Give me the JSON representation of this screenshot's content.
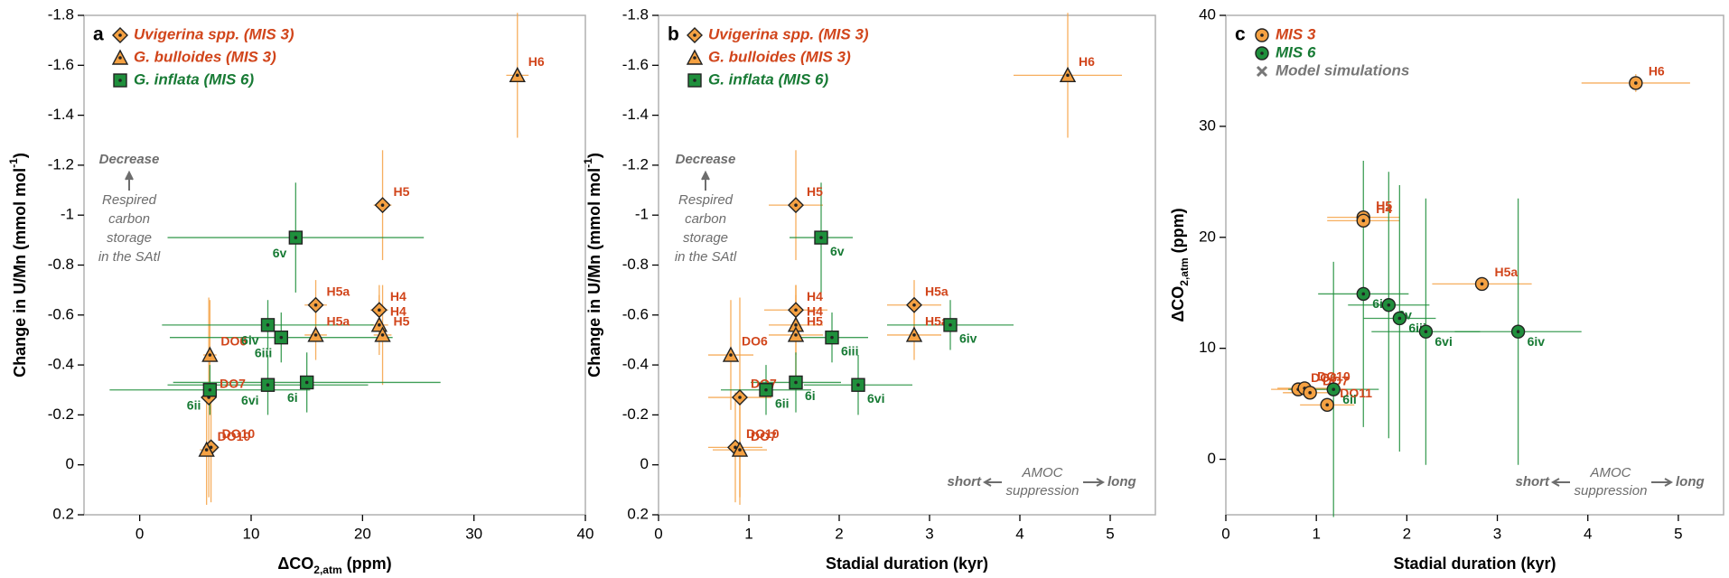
{
  "chart_data": [
    {
      "type": "scatter",
      "panel": "a",
      "x_label": [
        "ΔCO",
        "2,atm",
        " (ppm)"
      ],
      "y_label": [
        "Change in U/Mn (mmol mol",
        "-1",
        ")"
      ],
      "xlim": [
        -5,
        40
      ],
      "xticks": [
        0,
        10,
        20,
        30,
        40
      ],
      "ylim": [
        0.2,
        -1.8
      ],
      "yticks": [
        0.2,
        0,
        -0.2,
        -0.4,
        -0.6,
        -0.8,
        -1,
        -1.2,
        -1.4,
        -1.6,
        -1.8
      ],
      "annotations": {
        "decrease": "Decrease",
        "storage": [
          "Respired",
          "carbon",
          "storage",
          "in the SAtl"
        ]
      },
      "series": [
        {
          "name": "Uvigerina spp. (MIS 3)",
          "marker": "diamond",
          "color": "#f5a142",
          "label_color": "#d1451b",
          "point_labels": [
            "H5",
            "H4",
            "H5a",
            "DO7",
            "DO10"
          ],
          "x": [
            21.8,
            21.5,
            15.8,
            6.2,
            6.4
          ],
          "values": [
            -1.04,
            -0.62,
            -0.64,
            -0.27,
            -0.07
          ],
          "xerr": [
            0.8,
            0.8,
            1.0,
            0.6,
            0.6
          ],
          "yerr": [
            0.22,
            0.1,
            0.1,
            0.4,
            0.22
          ]
        },
        {
          "name": "G. bulloides (MIS 3)",
          "marker": "triangle",
          "color": "#f5a142",
          "label_color": "#d1451b",
          "point_labels": [
            "H6",
            "H4",
            "H5",
            "H5a",
            "DO6",
            "DO10"
          ],
          "x": [
            33.9,
            21.5,
            21.8,
            15.8,
            6.3,
            6.0
          ],
          "values": [
            -1.56,
            -0.56,
            -0.52,
            -0.52,
            -0.44,
            -0.06
          ],
          "xerr": [
            1.0,
            0.8,
            0.8,
            1.0,
            0.6,
            0.6
          ],
          "yerr": [
            0.25,
            0.12,
            0.2,
            0.1,
            0.22,
            0.22
          ]
        },
        {
          "name": "G. inflata (MIS 6)",
          "marker": "square",
          "color": "#1f8f3c",
          "label_color": "#177a34",
          "point_labels": [
            "6v",
            "6iv",
            "6iii",
            "6vi",
            "6i",
            "6ii"
          ],
          "x": [
            14.0,
            11.5,
            12.7,
            11.5,
            15.0,
            6.3
          ],
          "values": [
            -0.91,
            -0.56,
            -0.51,
            -0.32,
            -0.33,
            -0.3
          ],
          "xerr": [
            11.5,
            9.5,
            10,
            9,
            12,
            9
          ],
          "yerr": [
            0.22,
            0.1,
            0.1,
            0.12,
            0.12,
            0.1
          ]
        }
      ]
    },
    {
      "type": "scatter",
      "panel": "b",
      "x_label": [
        "Stadial duration (kyr)"
      ],
      "y_label": [
        "Change in U/Mn (mmol mol",
        "-1",
        ")"
      ],
      "xlim": [
        0,
        5.5
      ],
      "xticks": [
        0,
        1,
        2,
        3,
        4,
        5
      ],
      "ylim": [
        0.2,
        -1.8
      ],
      "yticks": [
        0.2,
        0,
        -0.2,
        -0.4,
        -0.6,
        -0.8,
        -1,
        -1.2,
        -1.4,
        -1.6,
        -1.8
      ],
      "annotations": {
        "decrease": "Decrease",
        "storage": [
          "Respired",
          "carbon",
          "storage",
          "in the SAtl"
        ],
        "short": "short",
        "amoc": [
          "AMOC",
          "suppression"
        ],
        "long": "long"
      },
      "series": [
        {
          "name": "Uvigerina spp. (MIS 3)",
          "marker": "diamond",
          "color": "#f5a142",
          "label_color": "#d1451b",
          "point_labels": [
            "H5",
            "H4",
            "H5a",
            "DO7",
            "DO10"
          ],
          "x": [
            1.52,
            1.52,
            2.83,
            0.9,
            0.85
          ],
          "values": [
            -1.04,
            -0.62,
            -0.64,
            -0.27,
            -0.07
          ],
          "xerr": [
            0.3,
            0.35,
            0.3,
            0.35,
            0.3
          ],
          "yerr": [
            0.22,
            0.1,
            0.1,
            0.4,
            0.22
          ]
        },
        {
          "name": "G. bulloides (MIS 3)",
          "marker": "triangle",
          "color": "#f5a142",
          "label_color": "#d1451b",
          "point_labels": [
            "H6",
            "H4",
            "H5",
            "H5a",
            "DO6",
            "DO7"
          ],
          "x": [
            4.53,
            1.52,
            1.52,
            2.83,
            0.8,
            0.9
          ],
          "values": [
            -1.56,
            -0.56,
            -0.52,
            -0.52,
            -0.44,
            -0.06
          ],
          "xerr": [
            0.6,
            0.3,
            0.3,
            0.3,
            0.25,
            0.3
          ],
          "yerr": [
            0.25,
            0.12,
            0.2,
            0.1,
            0.22,
            0.22
          ]
        },
        {
          "name": "G. inflata (MIS 6)",
          "marker": "square",
          "color": "#1f8f3c",
          "label_color": "#177a34",
          "point_labels": [
            "6v",
            "6iv",
            "6iii",
            "6vi",
            "6i",
            "6ii"
          ],
          "x": [
            1.8,
            3.23,
            1.92,
            2.21,
            1.52,
            1.19
          ],
          "values": [
            -0.91,
            -0.56,
            -0.51,
            -0.32,
            -0.33,
            -0.3
          ],
          "xerr": [
            0.35,
            0.7,
            0.4,
            0.6,
            0.5,
            0.5
          ],
          "yerr": [
            0.22,
            0.1,
            0.1,
            0.12,
            0.12,
            0.1
          ]
        }
      ]
    },
    {
      "type": "scatter",
      "panel": "c",
      "x_label": [
        "Stadial duration (kyr)"
      ],
      "y_label": [
        "ΔCO",
        "2,atm",
        " (ppm)"
      ],
      "xlim": [
        0,
        5.5
      ],
      "xticks": [
        0,
        1,
        2,
        3,
        4,
        5
      ],
      "ylim": [
        -5,
        40
      ],
      "yticks": [
        0,
        10,
        20,
        30,
        40
      ],
      "annotations": {
        "short": "short",
        "amoc": [
          "AMOC",
          "suppression"
        ],
        "long": "long"
      },
      "series": [
        {
          "name": "MIS 3",
          "marker": "circle",
          "color": "#f5a142",
          "label_color": "#d1451b",
          "point_labels": [
            "H6",
            "H5",
            "H4",
            "H5a",
            "DO6",
            "DO10",
            "DO7",
            "DO11"
          ],
          "x": [
            4.53,
            1.52,
            1.52,
            2.83,
            0.8,
            0.87,
            0.93,
            1.12
          ],
          "values": [
            33.9,
            21.8,
            21.5,
            15.8,
            6.3,
            6.4,
            6.0,
            4.9
          ],
          "xerr": [
            0.6,
            0.4,
            0.4,
            0.55,
            0.3,
            0.3,
            0.3,
            0.3
          ],
          "yerr": [
            0.8,
            0.5,
            0.5,
            0.5,
            0.3,
            0.3,
            0.3,
            0.3
          ]
        },
        {
          "name": "MIS 6",
          "marker": "circle",
          "color": "#1f8f3c",
          "label_color": "#177a34",
          "point_labels": [
            "6i",
            "6v",
            "6iii",
            "6vi",
            "6iv",
            "6ii"
          ],
          "x": [
            1.52,
            1.8,
            1.92,
            2.21,
            3.23,
            1.19
          ],
          "values": [
            14.9,
            13.9,
            12.7,
            11.5,
            11.5,
            6.3
          ],
          "xerr": [
            0.5,
            0.45,
            0.4,
            0.6,
            0.7,
            0.5
          ],
          "yerr": [
            12,
            12,
            12,
            12,
            12,
            11.5
          ]
        },
        {
          "name": "Model simulations",
          "marker": "x",
          "color": "#777777",
          "label_color": "#777777",
          "point_labels": [],
          "x": [],
          "values": [],
          "xerr": [],
          "yerr": []
        }
      ]
    }
  ]
}
